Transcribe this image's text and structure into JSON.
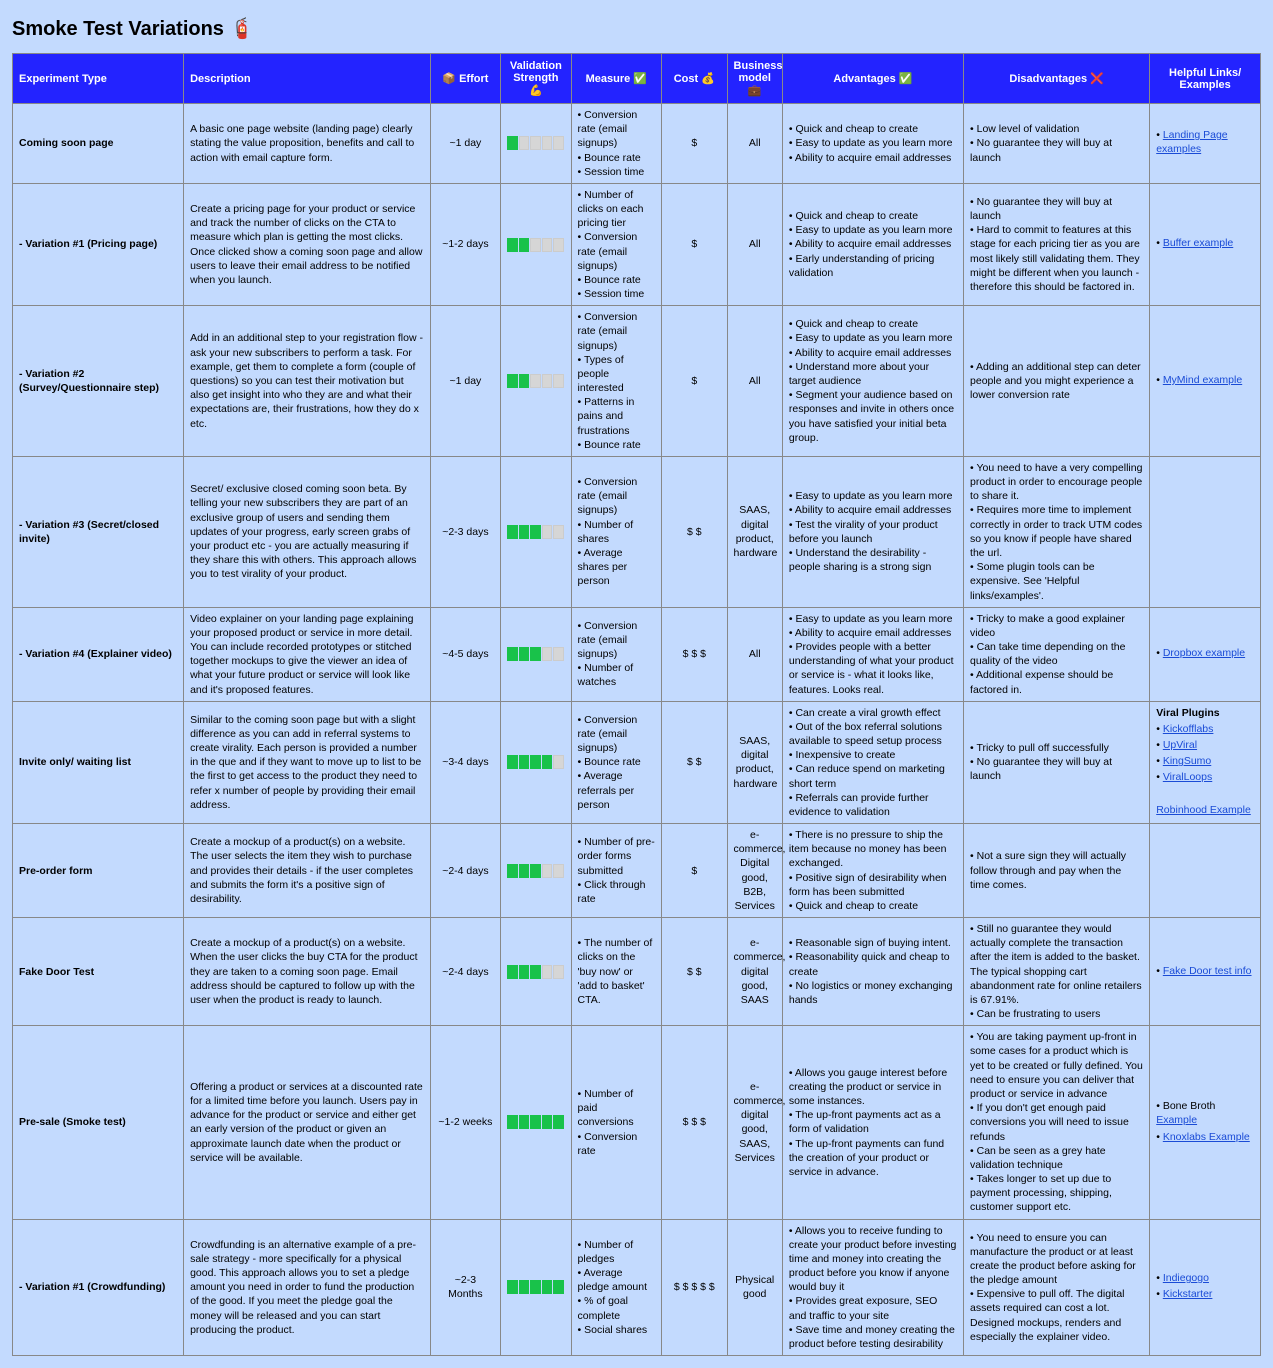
{
  "title": "Smoke Test Variations 🧯",
  "columns": [
    "Experiment Type",
    "Description",
    "📦 Effort",
    "Validation Strength 💪",
    "Measure ✅",
    "Cost 💰",
    "Business model 💼",
    "Advantages ✅",
    "Disadvantages ❌",
    "Helpful Links/ Examples"
  ],
  "strength_max": 5,
  "rows": [
    {
      "type": "Coming soon page",
      "desc": "A basic one page website (landing page) clearly stating the value proposition, benefits and call to action with email capture form.",
      "effort": "~1 day",
      "strength": 1,
      "measure": [
        "Conversion rate (email signups)",
        "Bounce rate",
        "Session time"
      ],
      "cost": "$",
      "biz": "All",
      "adv": [
        "Quick and cheap to create",
        "Easy to update as you learn more",
        "Ability to acquire email addresses"
      ],
      "dis": [
        "Low level of validation",
        "No guarantee they will buy at launch"
      ],
      "links": [
        {
          "text": "Landing Page examples",
          "bullet": true,
          "link": true
        }
      ]
    },
    {
      "type": "- Variation #1 (Pricing page)",
      "desc": "Create a pricing page for your product or service and track the number of clicks on the CTA to measure which plan is getting the most clicks. Once clicked show a coming soon page and allow users to leave their email address to be notified when you launch.",
      "effort": "~1-2 days",
      "strength": 2,
      "measure": [
        "Number of clicks on each pricing tier",
        "Conversion rate (email signups)",
        "Bounce rate",
        "Session time"
      ],
      "cost": "$",
      "biz": "All",
      "adv": [
        "Quick and cheap to create",
        "Easy to update as you learn more",
        "Ability to acquire email addresses",
        "Early understanding of pricing validation"
      ],
      "dis": [
        "No guarantee they will buy at launch",
        "Hard to commit to features at this stage for each pricing tier as you are most likely still validating them. They might be different when you launch - therefore this should be factored in."
      ],
      "links": [
        {
          "text": "Buffer example",
          "bullet": true,
          "link": true
        }
      ]
    },
    {
      "type": "- Variation #2 (Survey/Questionnaire step)",
      "desc": "Add in an additional step to your registration flow - ask your new subscribers to perform a task. For example, get them to complete a form (couple of questions) so you can test their motivation but also get insight into who they are and what their expectations are, their frustrations, how they do x etc.",
      "effort": "~1 day",
      "strength": 2,
      "measure": [
        "Conversion rate (email signups)",
        "Types of people interested",
        "Patterns in pains and frustrations",
        "Bounce rate"
      ],
      "cost": "$",
      "biz": "All",
      "adv": [
        "Quick and cheap to create",
        "Easy to update as you learn more",
        "Ability to acquire email addresses",
        "Understand more about your target audience",
        "Segment your audience based on responses and invite in others once you have satisfied your initial beta group."
      ],
      "dis": [
        "Adding an additional step can deter people and you might experience a lower conversion rate"
      ],
      "links": [
        {
          "text": "MyMind example",
          "bullet": true,
          "link": true
        }
      ]
    },
    {
      "type": "- Variation #3 (Secret/closed invite)",
      "desc": "Secret/ exclusive closed coming soon beta. By telling your new subscribers they are part of an exclusive group of users and sending them updates of your progress, early screen grabs of your product etc - you are actually measuring if they share this with others. This approach allows you to test virality of your product.",
      "effort": "~2-3 days",
      "strength": 3,
      "measure": [
        "Conversion rate (email signups)",
        "Number of shares",
        "Average shares per person"
      ],
      "cost": "$ $",
      "biz": "SAAS, digital product, hardware",
      "adv": [
        "Easy to update as you learn more",
        "Ability to acquire email addresses",
        "Test the virality of your product before you launch",
        "Understand the desirability - people sharing is a strong sign"
      ],
      "dis": [
        "You need to have a very compelling product in order to encourage people to share it.",
        "Requires more time to implement correctly in order to track UTM codes so you know if people have shared the url.",
        "Some plugin tools can be expensive. See 'Helpful links/examples'."
      ],
      "links": []
    },
    {
      "type": "- Variation #4 (Explainer video)",
      "desc": "Video explainer on your landing page explaining your proposed product or service in more detail. You can include recorded prototypes or stitched together mockups to give the viewer an idea of what your future product or service will look like and it's proposed features.",
      "effort": "~4-5 days",
      "strength": 3,
      "measure": [
        "Conversion rate (email signups)",
        "Number of watches"
      ],
      "cost": "$ $ $",
      "biz": "All",
      "adv": [
        "Easy to update as you learn more",
        "Ability to acquire email addresses",
        "Provides people with a better understanding of what your product or service is - what it looks like, features. Looks real."
      ],
      "dis": [
        "Tricky to make a good explainer video",
        "Can take time depending on the quality of the video",
        "Additional expense should be factored in."
      ],
      "links": [
        {
          "text": "Dropbox example",
          "bullet": true,
          "link": true
        }
      ]
    },
    {
      "type": "Invite only/ waiting list",
      "desc": "Similar to the coming soon page but with a slight difference as you can add in referral systems to create virality. Each person is provided a number in the que and if they want to move up to list to be the first to get access to the product they need to refer x number of people by providing their email address.",
      "effort": "~3-4 days",
      "strength": 4,
      "measure": [
        "Conversion rate (email signups)",
        "Bounce rate",
        "Average referrals per person"
      ],
      "cost": "$ $",
      "biz": "SAAS, digital product, hardware",
      "adv": [
        "Can create a viral growth effect",
        "Out of the box referral solutions available to speed setup process",
        "Inexpensive to create",
        "Can reduce spend on marketing short term",
        "Referrals can provide further evidence to validation"
      ],
      "dis": [
        "Tricky to pull off successfully",
        "No guarantee they will buy at launch"
      ],
      "links": [
        {
          "text": "Viral Plugins",
          "label": true
        },
        {
          "text": "Kickofflabs",
          "bullet": true,
          "link": true
        },
        {
          "text": "UpViral",
          "bullet": true,
          "link": true
        },
        {
          "text": "KingSumo",
          "bullet": true,
          "link": true
        },
        {
          "text": "ViralLoops",
          "bullet": true,
          "link": true
        },
        {
          "text": " ",
          "spacer": true
        },
        {
          "text": "Robinhood Example",
          "link": true
        }
      ]
    },
    {
      "type": "Pre-order form",
      "desc": "Create a mockup of a product(s) on a website. The user selects the item they wish to purchase and provides their details - if the user completes and submits the form it's a positive sign of desirability.",
      "effort": "~2-4 days",
      "strength": 3,
      "measure": [
        "Number of pre-order forms submitted",
        "Click through rate"
      ],
      "cost": "$",
      "biz": "e-commerce, Digital good, B2B, Services",
      "adv": [
        "There is no pressure to ship the item because no money has been exchanged.",
        "Positive sign of desirability when form has been submitted",
        "Quick and cheap to create"
      ],
      "dis": [
        "Not a sure sign they will actually follow through and pay when the time comes."
      ],
      "links": []
    },
    {
      "type": "Fake Door Test",
      "desc": "Create a mockup of a product(s) on a website. When the user clicks the buy CTA for the product they are taken to a coming soon page. Email address should be captured to follow up with the user when the product is ready to launch.",
      "effort": "~2-4 days",
      "strength": 3,
      "measure": [
        "The number of clicks on the 'buy now' or 'add to basket' CTA."
      ],
      "cost": "$ $",
      "biz": "e-commerce, digital good, SAAS",
      "adv": [
        "Reasonable sign of buying intent.",
        "Reasonability quick and cheap to create",
        "No logistics or money exchanging hands"
      ],
      "dis": [
        "Still no guarantee they would actually complete the transaction after the item is added to the basket. The typical shopping cart abandonment rate for online retailers is 67.91%.",
        "Can be frustrating to users"
      ],
      "links": [
        {
          "text": "Fake Door test info",
          "bullet": true,
          "link": true
        }
      ]
    },
    {
      "type": "Pre-sale (Smoke test)",
      "desc": "Offering a product or services at a discounted rate for a limited time before you launch. Users pay in advance for the product or service and either get an early version of the product or given an approximate launch date when the product or service will be available.",
      "effort": "~1-2 weeks",
      "strength": 5,
      "measure": [
        "Number of paid conversions",
        "Conversion rate"
      ],
      "cost": "$ $ $",
      "biz": "e-commerce, digital good, SAAS, Services",
      "adv": [
        "Allows you gauge interest before creating the product or service in some instances.",
        "The up-front payments act as a form of validation",
        "The up-front payments can fund the creation of your product or service in advance."
      ],
      "dis": [
        "You are taking payment up-front in some cases for a product which is yet to be created or fully defined. You need to ensure you can deliver that product or service in advance",
        "If you don't get enough paid conversions you will need to issue refunds",
        "Can be seen as a grey hate validation technique",
        "Takes longer to set up due to payment processing, shipping, customer support etc."
      ],
      "links": [
        {
          "text": "Bone Broth ",
          "bullet": true,
          "suffixLink": "Example"
        },
        {
          "text": "Knoxlabs Example",
          "bullet": true,
          "link": true
        }
      ]
    },
    {
      "type": "- Variation #1 (Crowdfunding)",
      "desc": "Crowdfunding is an alternative example of a pre-sale strategy - more specifically for a physical good. This approach allows you to set a pledge amount you need in order to fund the production of the good. If you meet the pledge goal the money will be released and you can start producing the product.",
      "effort": "~2-3 Months",
      "strength": 5,
      "measure": [
        "Number of pledges",
        "Average pledge amount",
        "% of goal complete",
        "Social shares"
      ],
      "cost": "$ $ $ $ $",
      "biz": "Physical good",
      "adv": [
        "Allows you to receive funding to create your product before investing time and money into creating the product before you know if anyone would buy it",
        "Provides great exposure, SEO and traffic to your site",
        "Save time and money creating the product before testing desirability"
      ],
      "dis": [
        "You need to ensure you can manufacture the product or at least create the product before asking for the pledge amount",
        "Expensive to pull off. The digital assets required can cost a lot. Designed mockups, renders and especially the explainer video."
      ],
      "links": [
        {
          "text": "Indiegogo",
          "bullet": true,
          "link": true
        },
        {
          "text": "Kickstarter",
          "bullet": true,
          "link": true
        }
      ]
    }
  ]
}
